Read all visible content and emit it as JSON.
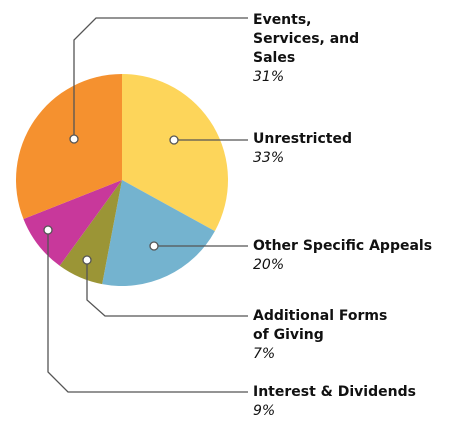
{
  "chart_data": {
    "type": "pie",
    "series": [
      {
        "name": "Unrestricted",
        "color": "#fdd55a",
        "values": [
          33
        ],
        "value_labels": [
          "33%"
        ]
      },
      {
        "name": "Other Specific Appeals",
        "color": "#74b3cf",
        "values": [
          20
        ],
        "value_labels": [
          "20%"
        ]
      },
      {
        "name": "Additional Forms of Giving",
        "color": "#9b9536",
        "values": [
          7
        ],
        "value_labels": [
          "7%"
        ]
      },
      {
        "name": "Interest & Dividends",
        "color": "#c8389b",
        "values": [
          9
        ],
        "value_labels": [
          "9%"
        ]
      },
      {
        "name": "Events, Services, and Sales",
        "color": "#f5912f",
        "values": [
          31
        ],
        "value_labels": [
          "31%"
        ]
      }
    ]
  }
}
